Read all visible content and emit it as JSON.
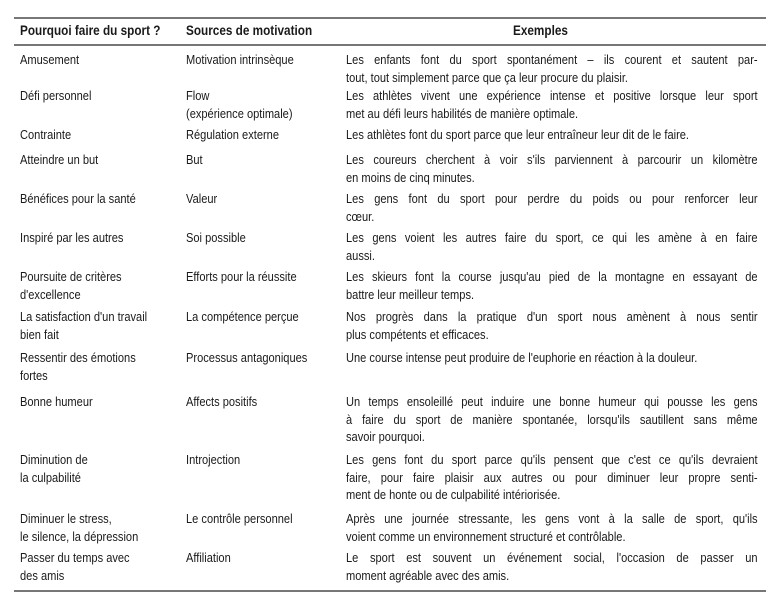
{
  "table": {
    "headers": [
      "Pourquoi faire du sport ?",
      "Sources de motivation",
      "Exemples"
    ],
    "rows": [
      {
        "reason": [
          "Amusement"
        ],
        "source": [
          "Motivation intrinsèque"
        ],
        "example": [
          "Les enfants font du sport spontanément – ils courent et sautent par-",
          "tout, tout simplement parce que ça leur procure du plaisir."
        ]
      },
      {
        "reason": [
          "Défi personnel"
        ],
        "source": [
          "Flow",
          "(expérience optimale)"
        ],
        "example": [
          "Les athlètes vivent une expérience intense et positive lorsque leur sport",
          "met au défi leurs habilités de manière optimale."
        ]
      },
      {
        "reason": [
          "Contrainte"
        ],
        "source": [
          "Régulation externe"
        ],
        "example": [
          "Les athlètes font du sport parce que leur entraîneur leur dit de le faire."
        ]
      },
      {
        "reason": [
          "Atteindre un but"
        ],
        "source": [
          "But"
        ],
        "example": [
          "Les coureurs cherchent à voir s'ils parviennent à parcourir un kilomètre",
          "en moins de cinq minutes."
        ]
      },
      {
        "reason": [
          "Bénéfices pour la santé"
        ],
        "source": [
          "Valeur"
        ],
        "example": [
          "Les gens font du sport pour perdre du poids ou pour renforcer leur",
          "cœur."
        ]
      },
      {
        "reason": [
          "Inspiré par les autres"
        ],
        "source": [
          "Soi possible"
        ],
        "example": [
          "Les gens voient les autres faire du sport, ce qui les amène à en faire",
          "aussi."
        ]
      },
      {
        "reason": [
          "Poursuite de critères",
          "d'excellence"
        ],
        "source": [
          "Efforts pour la réussite"
        ],
        "example": [
          "Les skieurs font la course jusqu'au pied de la montagne en essayant de",
          "battre leur meilleur temps."
        ]
      },
      {
        "reason": [
          "La satisfaction d'un travail",
          "bien fait"
        ],
        "source": [
          "La compétence perçue"
        ],
        "example": [
          "Nos progrès dans la pratique d'un sport nous amènent à nous sentir",
          "plus compétents et efficaces."
        ]
      },
      {
        "reason": [
          "Ressentir des émotions",
          "fortes"
        ],
        "source": [
          "Processus antagoniques"
        ],
        "example": [
          "Une course intense peut produire de l'euphorie en réaction à la douleur."
        ]
      },
      {
        "reason": [
          "Bonne humeur"
        ],
        "source": [
          "Affects positifs"
        ],
        "example": [
          "Un temps ensoleillé peut induire une bonne humeur qui pousse les gens",
          "à faire du sport de manière spontanée, lorsqu'ils sautillent sans même",
          "savoir pourquoi."
        ]
      },
      {
        "reason": [
          "Diminution de",
          "la culpabilité"
        ],
        "source": [
          "Introjection"
        ],
        "example": [
          "Les gens font du sport parce qu'ils pensent que c'est ce qu'ils devraient",
          "faire, pour faire plaisir aux autres ou pour diminuer leur propre senti-",
          "ment de honte ou de culpabilité intériorisée."
        ]
      },
      {
        "reason": [
          "Diminuer le stress,",
          "le silence, la dépression"
        ],
        "source": [
          "Le contrôle personnel"
        ],
        "example": [
          "Après une journée stressante, les gens vont à la salle de sport, qu'ils",
          "voient comme un environnement structuré et contrôlable."
        ]
      },
      {
        "reason": [
          "Passer du temps avec",
          "des amis"
        ],
        "source": [
          "Affiliation"
        ],
        "example": [
          "Le sport est souvent un événement social, l'occasion de passer un",
          "moment agréable avec des amis."
        ]
      }
    ]
  }
}
